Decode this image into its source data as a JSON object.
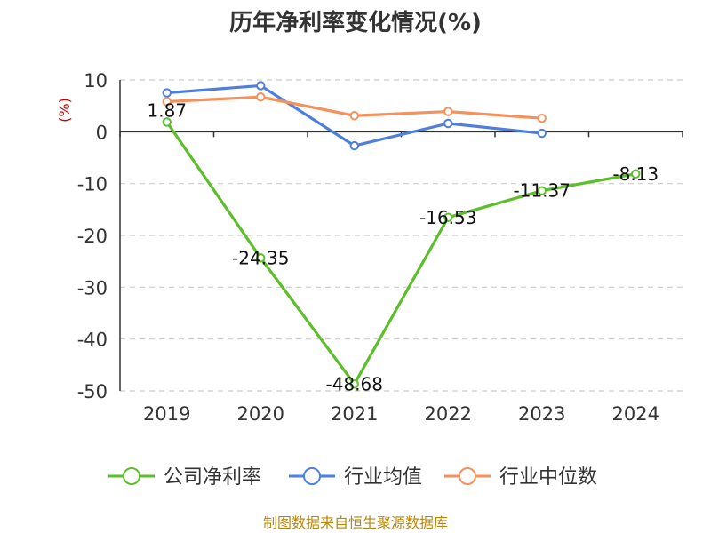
{
  "chart_data": {
    "type": "line",
    "title": "历年净利率变化情况(%)",
    "unit_label": "(%)",
    "categories": [
      "2019",
      "2020",
      "2021",
      "2022",
      "2023",
      "2024"
    ],
    "ylim": [
      -50,
      10
    ],
    "yticks": [
      10,
      0,
      -10,
      -20,
      -30,
      -40,
      -50
    ],
    "grid": true,
    "legend_position": "bottom",
    "series": [
      {
        "name": "公司净利率",
        "color": "#5cbf2a",
        "values": [
          1.87,
          -24.35,
          -48.68,
          -16.53,
          -11.37,
          -8.13
        ],
        "labels": [
          "1.87",
          "-24.35",
          "-48.68",
          "-16.53",
          "-11.37",
          "-8.13"
        ]
      },
      {
        "name": "行业均值",
        "color": "#4f7fdc",
        "values": [
          7.5,
          8.9,
          -2.7,
          1.6,
          -0.3,
          null
        ]
      },
      {
        "name": "行业中位数",
        "color": "#f5915a",
        "values": [
          5.8,
          6.7,
          3.1,
          3.9,
          2.6,
          null
        ]
      }
    ]
  },
  "source": "制图数据来自恒生聚源数据库"
}
